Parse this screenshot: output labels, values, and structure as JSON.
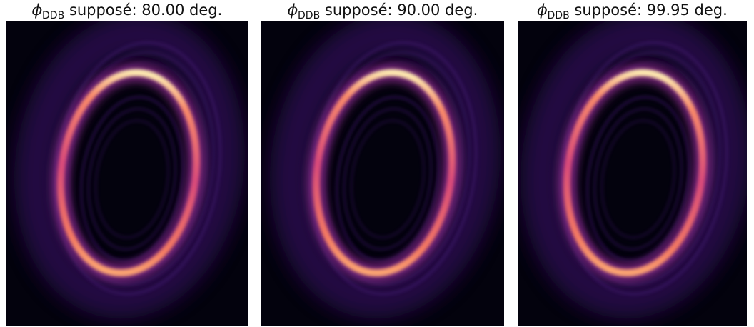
{
  "panels": [
    {
      "symbol": "ϕ",
      "subscript": "DDB",
      "text": "supposé: 80.00 deg."
    },
    {
      "symbol": "ϕ",
      "subscript": "DDB",
      "text": "supposé: 90.00 deg."
    },
    {
      "symbol": "ϕ",
      "subscript": "DDB",
      "text": "supposé: 99.95 deg."
    }
  ]
}
